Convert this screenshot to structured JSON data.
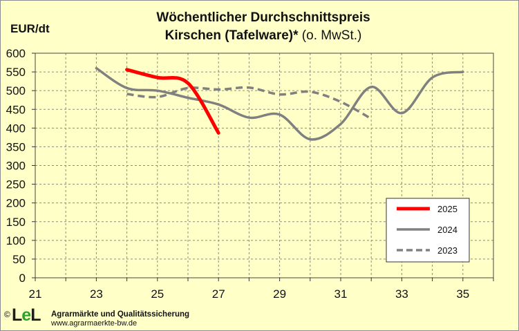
{
  "chart_data": {
    "type": "line",
    "title_line1": "Wöchentlicher Durchschnittspreis",
    "title_line2_bold": "Kirschen (Tafelware)*",
    "title_line2_normal": " (o. MwSt.)",
    "ylabel": "EUR/dt",
    "xlabel": "",
    "xlim": [
      21,
      36
    ],
    "ylim": [
      0,
      600
    ],
    "x_ticks": [
      21,
      23,
      25,
      27,
      29,
      31,
      33,
      35
    ],
    "y_ticks": [
      0,
      50,
      100,
      150,
      200,
      250,
      300,
      350,
      400,
      450,
      500,
      550,
      600
    ],
    "grid": true,
    "legend_position": "bottom-right",
    "series": [
      {
        "name": "2025",
        "color": "#ff0000",
        "style": "solid",
        "points": [
          [
            24,
            556
          ],
          [
            25,
            535
          ],
          [
            26,
            520
          ],
          [
            27,
            387
          ]
        ]
      },
      {
        "name": "2024",
        "color": "#808080",
        "style": "solid",
        "points": [
          [
            23,
            560
          ],
          [
            24,
            507
          ],
          [
            25,
            500
          ],
          [
            26,
            481
          ],
          [
            27,
            463
          ],
          [
            28,
            428
          ],
          [
            29,
            436
          ],
          [
            30,
            370
          ],
          [
            31,
            411
          ],
          [
            32,
            510
          ],
          [
            33,
            440
          ],
          [
            34,
            535
          ],
          [
            35,
            550
          ]
        ]
      },
      {
        "name": "2023",
        "color": "#808080",
        "style": "dashed",
        "points": [
          [
            24,
            491
          ],
          [
            25,
            483
          ],
          [
            26,
            507
          ],
          [
            27,
            503
          ],
          [
            28,
            508
          ],
          [
            29,
            490
          ],
          [
            30,
            497
          ],
          [
            31,
            470
          ],
          [
            32,
            425
          ]
        ]
      }
    ]
  },
  "footer": {
    "copyright": "©",
    "logo_left": "L",
    "logo_mid": "e",
    "logo_right": "L",
    "org": "Agrarmärkte und Qualitätssicherung",
    "url": "www.agrarmaerkte-bw.de"
  }
}
